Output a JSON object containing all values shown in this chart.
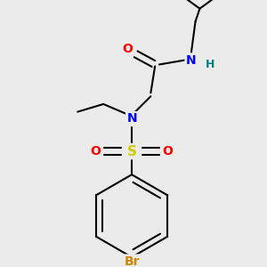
{
  "bg_color": "#ebebeb",
  "bond_color": "#000000",
  "bond_width": 1.5,
  "atom_colors": {
    "O": "#ff0000",
    "N_amide": "#0000ff",
    "N_sulfonamide": "#0000ff",
    "H": "#008080",
    "S": "#cccc00",
    "Br": "#cc8800",
    "C": "#000000"
  },
  "font_size_atoms": 10,
  "font_size_H": 9,
  "font_size_Br": 10
}
